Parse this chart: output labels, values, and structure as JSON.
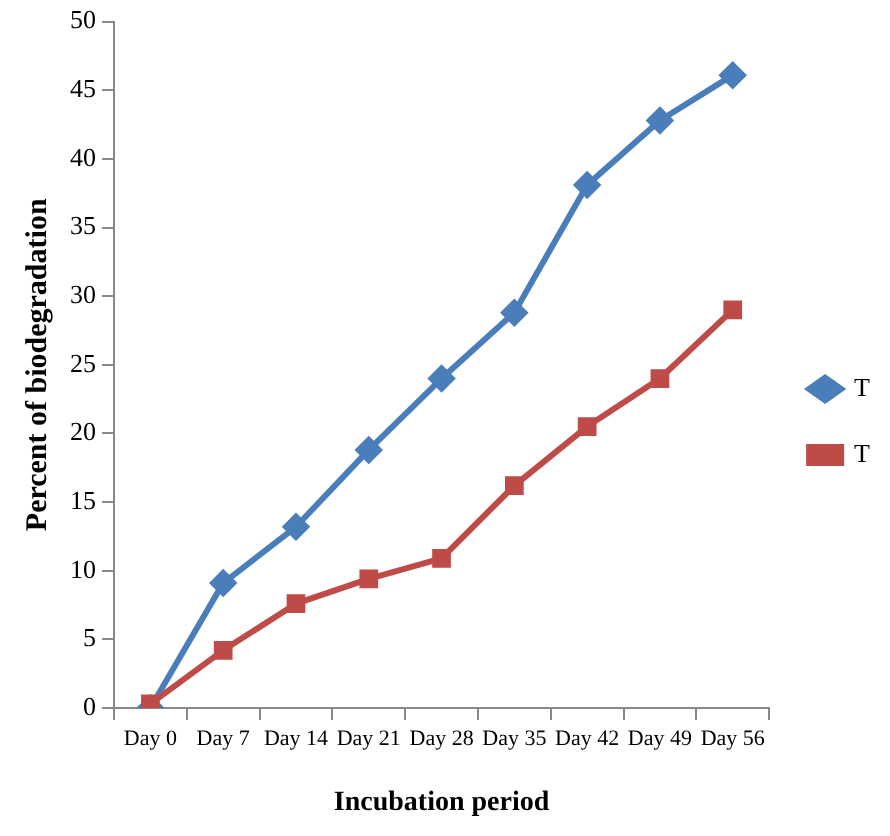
{
  "chart_data": {
    "type": "line",
    "xlabel": "Incubation period",
    "ylabel": "Percent of biodegradation",
    "categories": [
      "Day 0",
      "Day 7",
      "Day 14",
      "Day 21",
      "Day 28",
      "Day 35",
      "Day 42",
      "Day 49",
      "Day 56"
    ],
    "series": [
      {
        "name": "T",
        "color": "#4a7ebb",
        "marker": "diamond",
        "values": [
          0,
          9.1,
          13.2,
          18.8,
          24,
          28.8,
          38.1,
          42.8,
          46.1
        ]
      },
      {
        "name": "T",
        "color": "#be4b48",
        "marker": "square",
        "values": [
          0.3,
          4.2,
          7.6,
          9.4,
          10.9,
          16.2,
          20.5,
          24,
          29
        ]
      }
    ],
    "ylim": [
      0,
      50
    ],
    "yticks": [
      0,
      5,
      10,
      15,
      20,
      25,
      30,
      35,
      40,
      45,
      50
    ],
    "grid": false,
    "legend": "right"
  }
}
